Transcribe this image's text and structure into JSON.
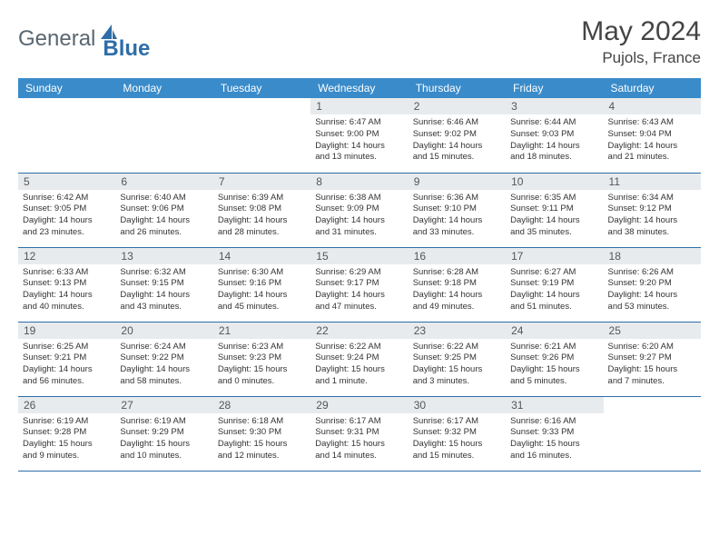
{
  "logo": {
    "part1": "General",
    "part2": "Blue"
  },
  "title": "May 2024",
  "location": "Pujols, France",
  "header_bg": "#3a8bc9",
  "border_color": "#2e6ea8",
  "daynum_bg": "#e8ebee",
  "weekdays": [
    "Sunday",
    "Monday",
    "Tuesday",
    "Wednesday",
    "Thursday",
    "Friday",
    "Saturday"
  ],
  "weeks": [
    [
      null,
      null,
      null,
      {
        "n": "1",
        "sunrise": "6:47 AM",
        "sunset": "9:00 PM",
        "dh": "14",
        "dm": "13"
      },
      {
        "n": "2",
        "sunrise": "6:46 AM",
        "sunset": "9:02 PM",
        "dh": "14",
        "dm": "15"
      },
      {
        "n": "3",
        "sunrise": "6:44 AM",
        "sunset": "9:03 PM",
        "dh": "14",
        "dm": "18"
      },
      {
        "n": "4",
        "sunrise": "6:43 AM",
        "sunset": "9:04 PM",
        "dh": "14",
        "dm": "21"
      }
    ],
    [
      {
        "n": "5",
        "sunrise": "6:42 AM",
        "sunset": "9:05 PM",
        "dh": "14",
        "dm": "23"
      },
      {
        "n": "6",
        "sunrise": "6:40 AM",
        "sunset": "9:06 PM",
        "dh": "14",
        "dm": "26"
      },
      {
        "n": "7",
        "sunrise": "6:39 AM",
        "sunset": "9:08 PM",
        "dh": "14",
        "dm": "28"
      },
      {
        "n": "8",
        "sunrise": "6:38 AM",
        "sunset": "9:09 PM",
        "dh": "14",
        "dm": "31"
      },
      {
        "n": "9",
        "sunrise": "6:36 AM",
        "sunset": "9:10 PM",
        "dh": "14",
        "dm": "33"
      },
      {
        "n": "10",
        "sunrise": "6:35 AM",
        "sunset": "9:11 PM",
        "dh": "14",
        "dm": "35"
      },
      {
        "n": "11",
        "sunrise": "6:34 AM",
        "sunset": "9:12 PM",
        "dh": "14",
        "dm": "38"
      }
    ],
    [
      {
        "n": "12",
        "sunrise": "6:33 AM",
        "sunset": "9:13 PM",
        "dh": "14",
        "dm": "40"
      },
      {
        "n": "13",
        "sunrise": "6:32 AM",
        "sunset": "9:15 PM",
        "dh": "14",
        "dm": "43"
      },
      {
        "n": "14",
        "sunrise": "6:30 AM",
        "sunset": "9:16 PM",
        "dh": "14",
        "dm": "45"
      },
      {
        "n": "15",
        "sunrise": "6:29 AM",
        "sunset": "9:17 PM",
        "dh": "14",
        "dm": "47"
      },
      {
        "n": "16",
        "sunrise": "6:28 AM",
        "sunset": "9:18 PM",
        "dh": "14",
        "dm": "49"
      },
      {
        "n": "17",
        "sunrise": "6:27 AM",
        "sunset": "9:19 PM",
        "dh": "14",
        "dm": "51"
      },
      {
        "n": "18",
        "sunrise": "6:26 AM",
        "sunset": "9:20 PM",
        "dh": "14",
        "dm": "53"
      }
    ],
    [
      {
        "n": "19",
        "sunrise": "6:25 AM",
        "sunset": "9:21 PM",
        "dh": "14",
        "dm": "56"
      },
      {
        "n": "20",
        "sunrise": "6:24 AM",
        "sunset": "9:22 PM",
        "dh": "14",
        "dm": "58"
      },
      {
        "n": "21",
        "sunrise": "6:23 AM",
        "sunset": "9:23 PM",
        "dh": "15",
        "dm": "0"
      },
      {
        "n": "22",
        "sunrise": "6:22 AM",
        "sunset": "9:24 PM",
        "dh": "15",
        "dm": "1"
      },
      {
        "n": "23",
        "sunrise": "6:22 AM",
        "sunset": "9:25 PM",
        "dh": "15",
        "dm": "3"
      },
      {
        "n": "24",
        "sunrise": "6:21 AM",
        "sunset": "9:26 PM",
        "dh": "15",
        "dm": "5"
      },
      {
        "n": "25",
        "sunrise": "6:20 AM",
        "sunset": "9:27 PM",
        "dh": "15",
        "dm": "7"
      }
    ],
    [
      {
        "n": "26",
        "sunrise": "6:19 AM",
        "sunset": "9:28 PM",
        "dh": "15",
        "dm": "9"
      },
      {
        "n": "27",
        "sunrise": "6:19 AM",
        "sunset": "9:29 PM",
        "dh": "15",
        "dm": "10"
      },
      {
        "n": "28",
        "sunrise": "6:18 AM",
        "sunset": "9:30 PM",
        "dh": "15",
        "dm": "12"
      },
      {
        "n": "29",
        "sunrise": "6:17 AM",
        "sunset": "9:31 PM",
        "dh": "15",
        "dm": "14"
      },
      {
        "n": "30",
        "sunrise": "6:17 AM",
        "sunset": "9:32 PM",
        "dh": "15",
        "dm": "15"
      },
      {
        "n": "31",
        "sunrise": "6:16 AM",
        "sunset": "9:33 PM",
        "dh": "15",
        "dm": "16"
      },
      null
    ]
  ],
  "labels": {
    "sunrise": "Sunrise:",
    "sunset": "Sunset:",
    "daylight_prefix": "Daylight:",
    "hours_word": "hours",
    "and_word": "and",
    "minutes_suffix": "minutes."
  }
}
